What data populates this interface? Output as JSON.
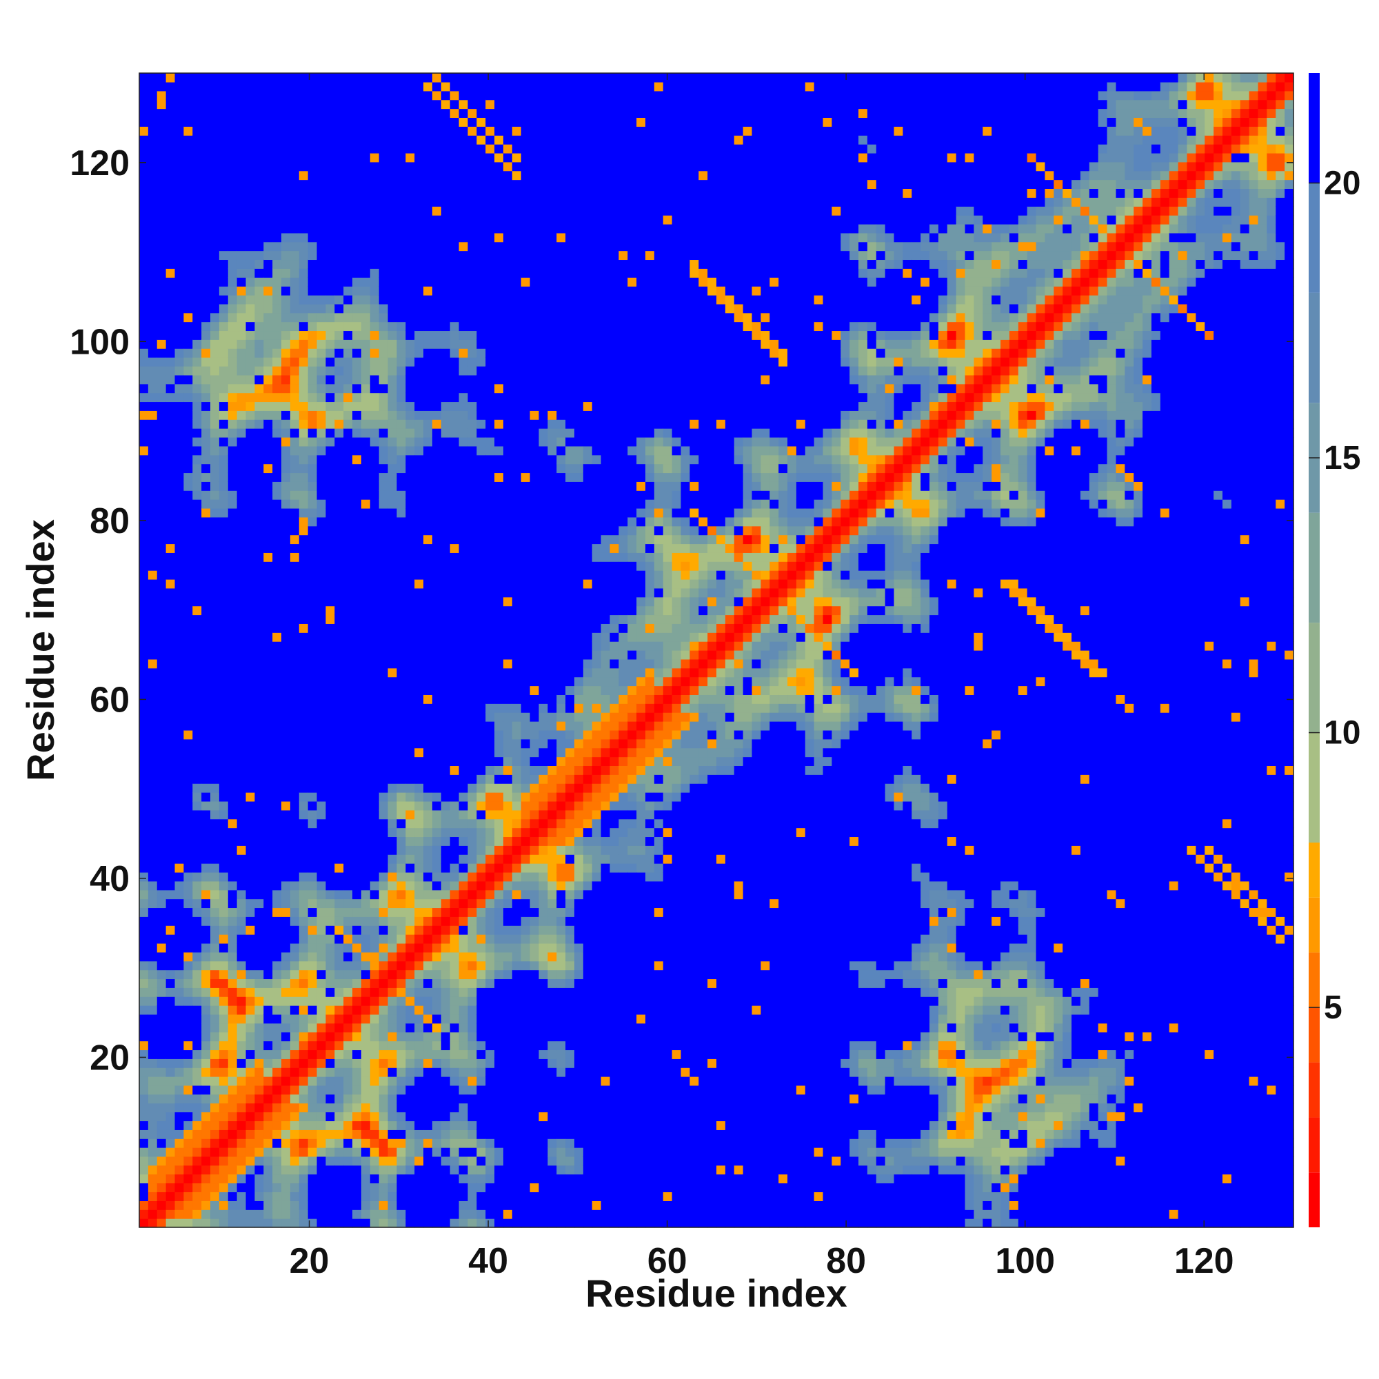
{
  "chart_data": {
    "type": "heatmap",
    "title": "",
    "xlabel": "Residue index",
    "ylabel": "Residue index",
    "n_residues": 130,
    "xlim": [
      1,
      130
    ],
    "ylim": [
      1,
      130
    ],
    "x_ticks": [
      20,
      40,
      60,
      80,
      100,
      120
    ],
    "y_ticks": [
      20,
      40,
      60,
      80,
      100,
      120
    ],
    "x_tick_labels": [
      "20",
      "40",
      "60",
      "80",
      "100",
      "120"
    ],
    "y_tick_labels": [
      "20",
      "40",
      "60",
      "80",
      "100",
      "120"
    ],
    "colorbar": {
      "range": [
        1,
        22
      ],
      "ticks": [
        5,
        10,
        15,
        20
      ],
      "tick_labels": [
        "5",
        "10",
        "15",
        "20"
      ],
      "levels": [
        {
          "max": 2,
          "color": "#ff0000"
        },
        {
          "max": 3,
          "color": "#ff1a00"
        },
        {
          "max": 4,
          "color": "#ff3300"
        },
        {
          "max": 5,
          "color": "#ff5500"
        },
        {
          "max": 6,
          "color": "#ff7700"
        },
        {
          "max": 7,
          "color": "#ff9900"
        },
        {
          "max": 8,
          "color": "#ffaa00"
        },
        {
          "max": 10,
          "color": "#a8bf84"
        },
        {
          "max": 12,
          "color": "#93b18e"
        },
        {
          "max": 14,
          "color": "#7fa59a"
        },
        {
          "max": 16,
          "color": "#6f98a8"
        },
        {
          "max": 18,
          "color": "#628cb4"
        },
        {
          "max": 20,
          "color": "#5a86bd"
        },
        {
          "max": 22,
          "color": "#0000ff"
        }
      ]
    },
    "contact_features": [
      {
        "type": "diagonal",
        "from": 1,
        "to": 130
      },
      {
        "type": "parallel-band",
        "from": [
          44,
          47
        ],
        "to": [
          58,
          61
        ],
        "note": "helix-like i,i+3/4 band"
      },
      {
        "type": "parallel-band",
        "from": [
          2,
          6
        ],
        "to": [
          14,
          18
        ]
      },
      {
        "type": "anti-parallel",
        "center": [
          71,
          71
        ],
        "arm": 9
      },
      {
        "type": "anti-parallel",
        "center": [
          110,
          110
        ],
        "arm": 10
      },
      {
        "type": "anti-parallel",
        "center": [
          38,
          126
        ]
      },
      {
        "type": "anti-parallel",
        "center": [
          68,
          103
        ]
      },
      {
        "type": "anti-parallel",
        "center": [
          104,
          68
        ]
      },
      {
        "type": "anti-parallel",
        "center": [
          124,
          38
        ]
      },
      {
        "type": "anti-parallel",
        "center": [
          28,
          29
        ]
      }
    ]
  }
}
